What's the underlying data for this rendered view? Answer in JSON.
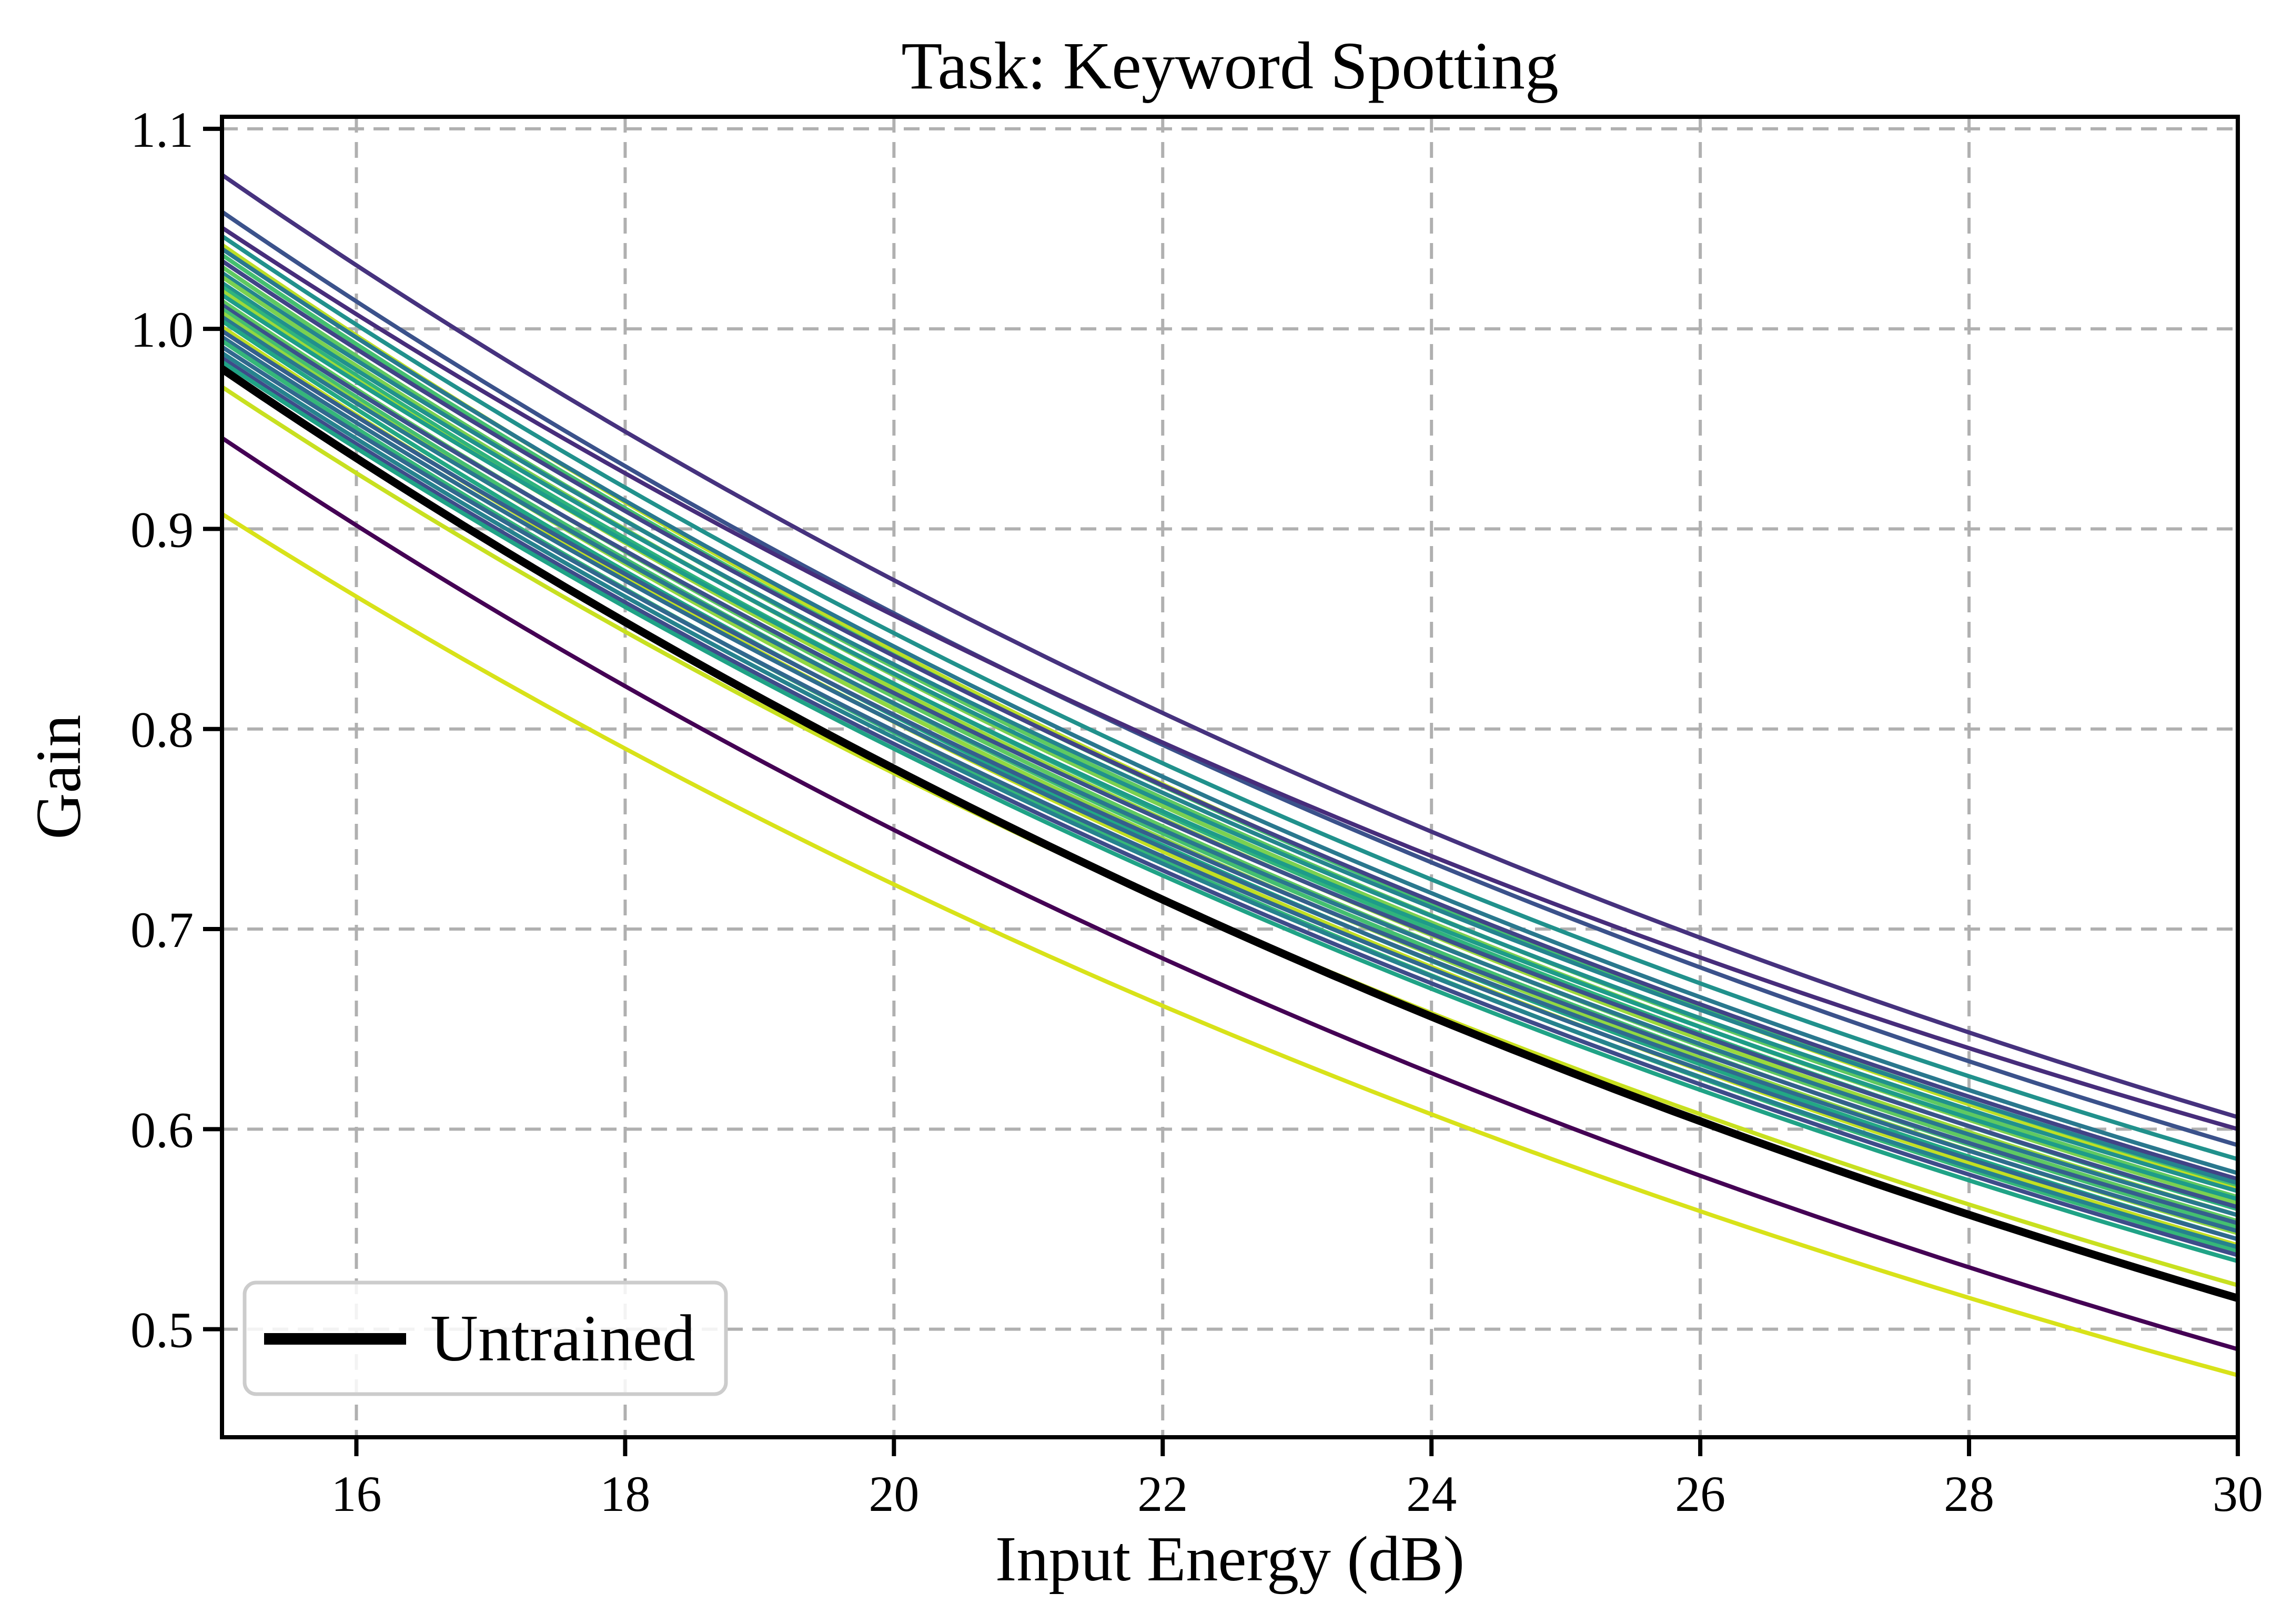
{
  "figure": {
    "background": "#ffffff",
    "frame_color": "#000000",
    "grid_color": "#b0b0b0"
  },
  "chart_data": {
    "type": "line",
    "title": "Task: Keyword Spotting",
    "xlabel": "Input Energy (dB)",
    "ylabel": "Gain",
    "xlim": [
      15,
      30
    ],
    "ylim": [
      0.446,
      1.106
    ],
    "grid": {
      "show": true,
      "color": "#b0b0b0",
      "style": "dashed"
    },
    "legend": {
      "label": "Untrained",
      "location": "lower left",
      "line_color": "#000000"
    },
    "x_ticks": [
      {
        "value": 16,
        "label": "16"
      },
      {
        "value": 18,
        "label": "18"
      },
      {
        "value": 20,
        "label": "20"
      },
      {
        "value": 22,
        "label": "22"
      },
      {
        "value": 24,
        "label": "24"
      },
      {
        "value": 26,
        "label": "26"
      },
      {
        "value": 28,
        "label": "28"
      },
      {
        "value": 30,
        "label": "30"
      }
    ],
    "y_ticks": [
      {
        "value": 1.1,
        "label": "1.1"
      },
      {
        "value": 1.0,
        "label": "1.0"
      },
      {
        "value": 0.9,
        "label": "0.9"
      },
      {
        "value": 0.8,
        "label": "0.8"
      },
      {
        "value": 0.7,
        "label": "0.7"
      },
      {
        "value": 0.6,
        "label": "0.6"
      },
      {
        "value": 0.5,
        "label": "0.5"
      }
    ],
    "curve_model": {
      "formula": "g(E) = g15 - (g15 - g30) * (1 - rho^u)/(1 - rho), with u = (E - 15)/15",
      "rho": 0.43
    },
    "series": [
      {
        "color": "#46327e",
        "lw": 8,
        "g15": 1.077,
        "g30": 0.606
      },
      {
        "color": "#3b528b",
        "lw": 8,
        "g15": 1.0585,
        "g30": 0.592
      },
      {
        "color": "#472d7b",
        "lw": 8,
        "g15": 1.0506,
        "g30": 0.6
      },
      {
        "color": "#21918c",
        "lw": 8,
        "g15": 1.0464,
        "g30": 0.585
      },
      {
        "color": "#bddf26",
        "lw": 8,
        "g15": 1.042,
        "g30": 0.57
      },
      {
        "color": "#2a788e",
        "lw": 8,
        "g15": 1.04,
        "g30": 0.578
      },
      {
        "color": "#44bf70",
        "lw": 8,
        "g15": 1.037,
        "g30": 0.572
      },
      {
        "color": "#414487",
        "lw": 8,
        "g15": 1.034,
        "g30": 0.575
      },
      {
        "color": "#5ec962",
        "lw": 8,
        "g15": 1.031,
        "g30": 0.566
      },
      {
        "color": "#25848e",
        "lw": 8,
        "g15": 1.028,
        "g30": 0.573
      },
      {
        "color": "#7ad151",
        "lw": 8,
        "g15": 1.026,
        "g30": 0.563
      },
      {
        "color": "#21918c",
        "lw": 8,
        "g15": 1.023,
        "g30": 0.569
      },
      {
        "color": "#2fb47c",
        "lw": 8,
        "g15": 1.021,
        "g30": 0.56
      },
      {
        "color": "#9bd93c",
        "lw": 8,
        "g15": 1.019,
        "g30": 0.557
      },
      {
        "color": "#1e9c89",
        "lw": 8,
        "g15": 1.017,
        "g30": 0.565
      },
      {
        "color": "#5ec962",
        "lw": 8,
        "g15": 1.014,
        "g30": 0.554
      },
      {
        "color": "#3b528b",
        "lw": 8,
        "g15": 1.012,
        "g30": 0.561
      },
      {
        "color": "#44bf70",
        "lw": 8,
        "g15": 1.01,
        "g30": 0.551
      },
      {
        "color": "#90d743",
        "lw": 8,
        "g15": 1.008,
        "g30": 0.548
      },
      {
        "color": "#2a788e",
        "lw": 8,
        "g15": 1.006,
        "g30": 0.557
      },
      {
        "color": "#22a884",
        "lw": 8,
        "g15": 1.004,
        "g30": 0.545
      },
      {
        "color": "#c2df23",
        "lw": 8,
        "g15": 1.001,
        "g30": 0.542
      },
      {
        "color": "#355f8d",
        "lw": 8,
        "g15": 0.999,
        "g30": 0.553
      },
      {
        "color": "#2f6c8e",
        "lw": 8,
        "g15": 0.996,
        "g30": 0.549
      },
      {
        "color": "#35b779",
        "lw": 8,
        "g15": 0.994,
        "g30": 0.539
      },
      {
        "color": "#31688e",
        "lw": 8,
        "g15": 0.991,
        "g30": 0.545
      },
      {
        "color": "#26828e",
        "lw": 8,
        "g15": 0.988,
        "g30": 0.541
      },
      {
        "color": "#3e4c8a",
        "lw": 8,
        "g15": 0.9855,
        "g30": 0.537
      },
      {
        "color": "#20a386",
        "lw": 8,
        "g15": 0.9835,
        "g30": 0.534
      },
      {
        "color": "#c8e020",
        "lw": 8,
        "g15": 0.971,
        "g30": 0.522
      },
      {
        "color": "#440154",
        "lw": 8,
        "g15": 0.9455,
        "g30": 0.49
      },
      {
        "color": "#d8e219",
        "lw": 8,
        "g15": 0.9075,
        "g30": 0.477
      },
      {
        "name": "Untrained",
        "color": "#000000",
        "lw": 15,
        "g15": 0.98,
        "g30": 0.5155
      }
    ]
  }
}
